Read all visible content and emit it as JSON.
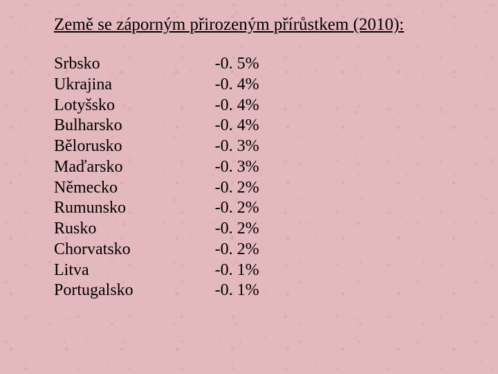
{
  "title": "Země se záporným přirozeným přírůstkem (2010):",
  "table": {
    "rows": [
      {
        "country": "Srbsko",
        "value": "-0. 5%"
      },
      {
        "country": "Ukrajina",
        "value": "-0. 4%"
      },
      {
        "country": "Lotyšsko",
        "value": "-0. 4%"
      },
      {
        "country": "Bulharsko",
        "value": "-0. 4%"
      },
      {
        "country": "Bělorusko",
        "value": "-0. 3%"
      },
      {
        "country": "Maďarsko",
        "value": "-0. 3%"
      },
      {
        "country": "Německo",
        "value": "-0. 2%"
      },
      {
        "country": "Rumunsko",
        "value": "-0. 2%"
      },
      {
        "country": "Rusko",
        "value": "-0. 2%"
      },
      {
        "country": "Chorvatsko",
        "value": "-0. 2%"
      },
      {
        "country": "Litva",
        "value": "-0. 1%"
      },
      {
        "country": "Portugalsko",
        "value": "-0. 1%"
      }
    ]
  },
  "style": {
    "background_base": "#e4b9bd",
    "text_color": "#000000",
    "title_fontsize": 25,
    "body_fontsize": 24,
    "font_family": "Times New Roman"
  }
}
